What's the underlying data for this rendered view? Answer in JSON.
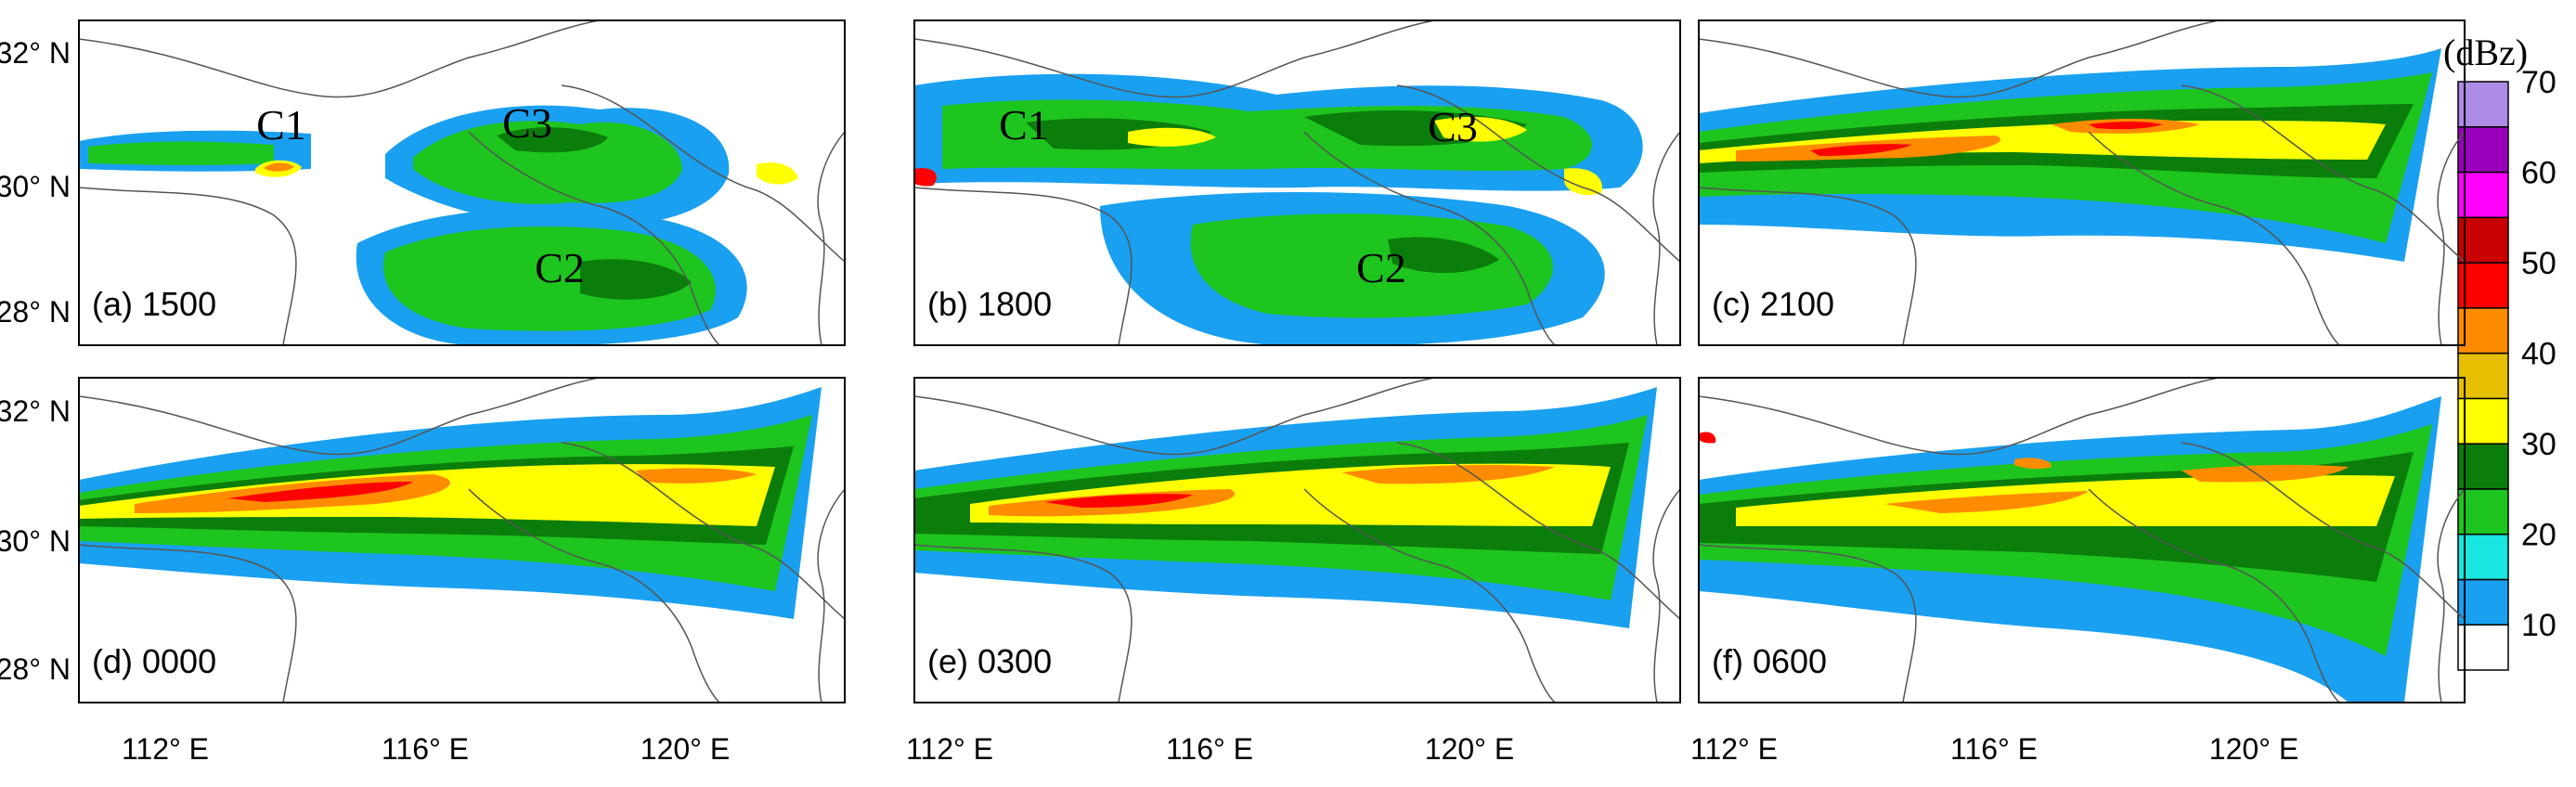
{
  "figure": {
    "unit_label": "(dBz)",
    "colorbar": {
      "levels": [
        "10",
        "20",
        "30",
        "40",
        "50",
        "60",
        "70"
      ],
      "colors": [
        "#ffffff",
        "#1aa0f0",
        "#19e6de",
        "#1ec51e",
        "#0b7d0b",
        "#ffff00",
        "#e6c000",
        "#ff8c00",
        "#ff0000",
        "#c80000",
        "#ff00ff",
        "#9900bb",
        "#ac8ce6"
      ]
    },
    "y_ticks": [
      "28° N",
      "30° N",
      "32° N"
    ],
    "x_ticks": [
      "112° E",
      "116° E",
      "120° E"
    ],
    "panels": [
      {
        "id": "a",
        "label": "(a) 1500",
        "cell_labels": [
          "C1",
          "C3",
          "C2"
        ]
      },
      {
        "id": "b",
        "label": "(b) 1800",
        "cell_labels": [
          "C1",
          "C3",
          "C2"
        ]
      },
      {
        "id": "c",
        "label": "(c) 2100",
        "cell_labels": []
      },
      {
        "id": "d",
        "label": "(d) 0000",
        "cell_labels": []
      },
      {
        "id": "e",
        "label": "(e) 0300",
        "cell_labels": []
      },
      {
        "id": "f",
        "label": "(f) 0600",
        "cell_labels": []
      }
    ]
  }
}
